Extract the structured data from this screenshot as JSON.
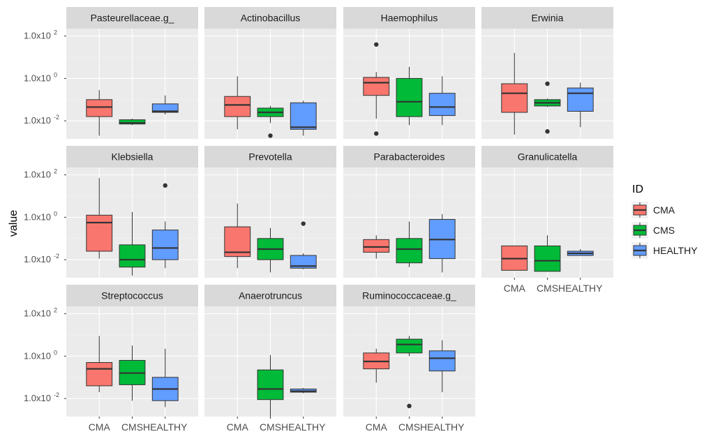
{
  "chart_data": {
    "type": "boxplot",
    "ylabel": "value",
    "legend": {
      "title": "ID",
      "placement": "right",
      "entries": [
        {
          "name": "CMA",
          "color": "#F8766D"
        },
        {
          "name": "CMS",
          "color": "#00BA38"
        },
        {
          "name": "HEALTHY",
          "color": "#619CFF"
        }
      ]
    },
    "categories": [
      "CMA",
      "CMS",
      "HEALTHY"
    ],
    "y_scale": "log10",
    "y_ticks": [
      {
        "exp": -2,
        "base": "1.0x10",
        "sup": "-2"
      },
      {
        "exp": 0,
        "base": "1.0x10",
        "sup": "0"
      },
      {
        "exp": 2,
        "base": "1.0x10",
        "sup": "2"
      }
    ],
    "ylim_log10": [
      -2.85,
      2.35
    ],
    "facets": [
      {
        "name": "Pasteurellaceae.g_",
        "boxes": [
          {
            "group": "CMA",
            "lo": -2.7,
            "q1": -1.8,
            "med": -1.35,
            "q3": -1.0,
            "hi": -0.55,
            "outliers": []
          },
          {
            "group": "CMS",
            "lo": -2.2,
            "q1": -2.15,
            "med": -2.1,
            "q3": -1.95,
            "hi": -1.9,
            "outliers": []
          },
          {
            "group": "HEALTHY",
            "lo": -1.7,
            "q1": -1.6,
            "med": -1.55,
            "q3": -1.2,
            "hi": -0.8,
            "outliers": []
          }
        ]
      },
      {
        "name": "Actinobacillus",
        "boxes": [
          {
            "group": "CMA",
            "lo": -2.4,
            "q1": -1.8,
            "med": -1.25,
            "q3": -0.85,
            "hi": 0.1,
            "outliers": []
          },
          {
            "group": "CMS",
            "lo": -2.1,
            "q1": -1.8,
            "med": -1.6,
            "q3": -1.4,
            "hi": -1.3,
            "outliers": [
              -2.7
            ]
          },
          {
            "group": "HEALTHY",
            "lo": -2.7,
            "q1": -2.4,
            "med": -2.3,
            "q3": -1.15,
            "hi": -1.05,
            "outliers": []
          }
        ]
      },
      {
        "name": "Haemophilus",
        "boxes": [
          {
            "group": "CMA",
            "lo": -1.9,
            "q1": -0.8,
            "med": -0.2,
            "q3": 0.05,
            "hi": 0.3,
            "outliers": [
              1.6,
              -2.6
            ]
          },
          {
            "group": "CMS",
            "lo": -2.2,
            "q1": -1.8,
            "med": -1.1,
            "q3": 0.0,
            "hi": 0.55,
            "outliers": []
          },
          {
            "group": "HEALTHY",
            "lo": -2.2,
            "q1": -1.75,
            "med": -1.35,
            "q3": -0.7,
            "hi": 0.1,
            "outliers": []
          }
        ]
      },
      {
        "name": "Erwinia",
        "boxes": [
          {
            "group": "CMA",
            "lo": -2.65,
            "q1": -1.6,
            "med": -0.7,
            "q3": -0.25,
            "hi": 1.2,
            "outliers": []
          },
          {
            "group": "CMS",
            "lo": -1.35,
            "q1": -1.3,
            "med": -1.15,
            "q3": -1.0,
            "hi": -0.95,
            "outliers": [
              -0.25,
              -2.5
            ]
          },
          {
            "group": "HEALTHY",
            "lo": -2.3,
            "q1": -1.55,
            "med": -0.7,
            "q3": -0.45,
            "hi": -0.2,
            "outliers": []
          }
        ]
      },
      {
        "name": "Klebsiella",
        "boxes": [
          {
            "group": "CMA",
            "lo": -1.95,
            "q1": -1.6,
            "med": -0.25,
            "q3": 0.1,
            "hi": 1.85,
            "outliers": []
          },
          {
            "group": "CMS",
            "lo": -2.75,
            "q1": -2.35,
            "med": -2.0,
            "q3": -1.3,
            "hi": 0.25,
            "outliers": []
          },
          {
            "group": "HEALTHY",
            "lo": -2.4,
            "q1": -2.0,
            "med": -1.45,
            "q3": -0.6,
            "hi": -0.2,
            "outliers": [
              1.5
            ]
          }
        ]
      },
      {
        "name": "Prevotella",
        "boxes": [
          {
            "group": "CMA",
            "lo": -2.4,
            "q1": -1.85,
            "med": -1.65,
            "q3": -0.45,
            "hi": 0.65,
            "outliers": []
          },
          {
            "group": "CMS",
            "lo": -2.6,
            "q1": -2.0,
            "med": -1.5,
            "q3": -1.0,
            "hi": -0.5,
            "outliers": []
          },
          {
            "group": "HEALTHY",
            "lo": -2.45,
            "q1": -2.4,
            "med": -2.3,
            "q3": -1.8,
            "hi": -1.7,
            "outliers": [
              -0.3
            ]
          }
        ]
      },
      {
        "name": "Parabacteroides",
        "boxes": [
          {
            "group": "CMA",
            "lo": -1.95,
            "q1": -1.65,
            "med": -1.4,
            "q3": -1.05,
            "hi": -0.85,
            "outliers": []
          },
          {
            "group": "CMS",
            "lo": -2.35,
            "q1": -2.15,
            "med": -1.5,
            "q3": -1.0,
            "hi": -0.2,
            "outliers": []
          },
          {
            "group": "HEALTHY",
            "lo": -2.6,
            "q1": -1.95,
            "med": -1.05,
            "q3": -0.1,
            "hi": 0.15,
            "outliers": []
          }
        ]
      },
      {
        "name": "Granulicatella",
        "boxes": [
          {
            "group": "CMA",
            "lo": -2.5,
            "q1": -2.5,
            "med": -1.95,
            "q3": -1.35,
            "hi": -1.35,
            "outliers": []
          },
          {
            "group": "CMS",
            "lo": -2.55,
            "q1": -2.55,
            "med": -2.05,
            "q3": -1.35,
            "hi": -0.85,
            "outliers": []
          },
          {
            "group": "HEALTHY",
            "lo": -1.8,
            "q1": -1.8,
            "med": -1.7,
            "q3": -1.6,
            "hi": -1.5,
            "outliers": []
          }
        ]
      },
      {
        "name": "Streptococcus",
        "boxes": [
          {
            "group": "CMA",
            "lo": -1.7,
            "q1": -1.4,
            "med": -0.6,
            "q3": -0.3,
            "hi": 0.95,
            "outliers": []
          },
          {
            "group": "CMS",
            "lo": -2.1,
            "q1": -1.35,
            "med": -0.8,
            "q3": -0.2,
            "hi": 0.5,
            "outliers": []
          },
          {
            "group": "HEALTHY",
            "lo": -2.4,
            "q1": -2.1,
            "med": -1.55,
            "q3": -1.0,
            "hi": 0.35,
            "outliers": []
          }
        ]
      },
      {
        "name": "Anaerotruncus",
        "boxes": [
          {
            "group": "CMS",
            "lo": -2.85,
            "q1": -2.05,
            "med": -1.55,
            "q3": -0.65,
            "hi": 0.05,
            "outliers": []
          },
          {
            "group": "HEALTHY",
            "lo": -1.75,
            "q1": -1.7,
            "med": -1.65,
            "q3": -1.55,
            "hi": -1.5,
            "outliers": []
          }
        ]
      },
      {
        "name": "Ruminococcaceae.g_",
        "boxes": [
          {
            "group": "CMA",
            "lo": -1.25,
            "q1": -0.6,
            "med": -0.25,
            "q3": 0.15,
            "hi": 0.35,
            "outliers": []
          },
          {
            "group": "CMS",
            "lo": 0.0,
            "q1": 0.15,
            "med": 0.55,
            "q3": 0.8,
            "hi": 0.95,
            "outliers": [
              -2.35
            ]
          },
          {
            "group": "HEALTHY",
            "lo": -1.7,
            "q1": -0.7,
            "med": -0.1,
            "q3": 0.25,
            "hi": 0.75,
            "outliers": []
          }
        ]
      }
    ]
  }
}
